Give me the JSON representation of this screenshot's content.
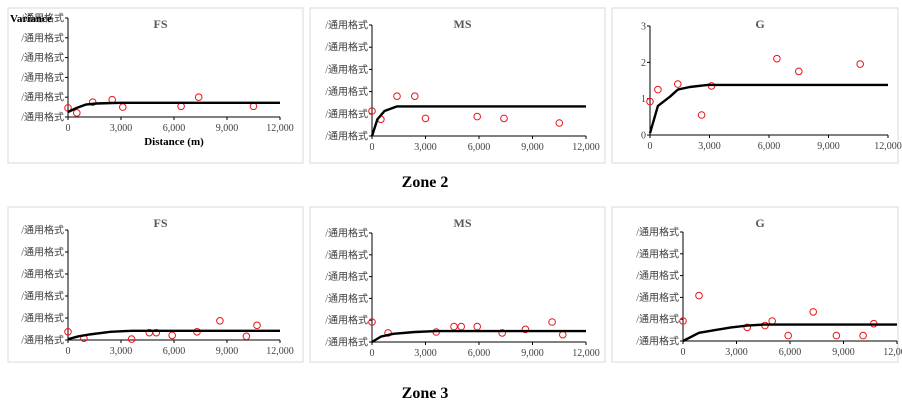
{
  "colors": {
    "point": "#e8141e",
    "model": "#000000",
    "frame": "#d9d9d9"
  },
  "zones": [
    "Zone 2",
    "Zone 3"
  ],
  "chart_data": [
    {
      "type": "scatter",
      "title": "FS",
      "ylabel": "Variance",
      "xlabel": "Distance (m)",
      "xlim": [
        0,
        12000
      ],
      "xticks": [
        "0",
        "3,000",
        "6,000",
        "9,000",
        "12,000"
      ],
      "yticks": [
        "/通用格式",
        "/通用格式",
        "/通用格式",
        "/通用格式",
        "/通用格式",
        "/通用格式"
      ],
      "series": [
        {
          "kind": "points",
          "x": [
            0,
            500,
            1400,
            2500,
            3100,
            6400,
            7400,
            10500
          ],
          "y": [
            0.55,
            0.25,
            0.9,
            1.05,
            0.6,
            0.65,
            1.2,
            0.65
          ]
        },
        {
          "kind": "model",
          "x": [
            0,
            500,
            1000,
            1600,
            2500,
            3000,
            12000
          ],
          "y": [
            0.3,
            0.55,
            0.75,
            0.82,
            0.85,
            0.86,
            0.86
          ]
        }
      ]
    },
    {
      "type": "scatter",
      "title": "MS",
      "xlim": [
        0,
        12000
      ],
      "xticks": [
        "0",
        "3,000",
        "6,000",
        "9,000",
        "12,000"
      ],
      "yticks": [
        "/通用格式",
        "/通用格式",
        "/通用格式",
        "/通用格式",
        "/通用格式",
        "/通用格式"
      ],
      "series": [
        {
          "kind": "points",
          "x": [
            0,
            500,
            1400,
            2400,
            3000,
            5900,
            7400,
            10500
          ],
          "y": [
            1.35,
            0.9,
            2.15,
            2.15,
            0.95,
            1.05,
            0.95,
            0.7
          ]
        },
        {
          "kind": "model",
          "x": [
            0,
            300,
            700,
            1400,
            2000,
            12000
          ],
          "y": [
            0.0,
            0.9,
            1.35,
            1.6,
            1.6,
            1.6
          ]
        }
      ]
    },
    {
      "type": "scatter",
      "title": "G",
      "xlim": [
        0,
        12000
      ],
      "ylim": [
        0,
        3
      ],
      "xticks": [
        "0",
        "3,000",
        "6,000",
        "9,000",
        "12,000"
      ],
      "yticks": [
        "0",
        "1",
        "2",
        "3"
      ],
      "series": [
        {
          "kind": "points",
          "x": [
            0,
            400,
            1400,
            2600,
            3100,
            6400,
            7500,
            10600
          ],
          "y": [
            0.92,
            1.25,
            1.4,
            0.55,
            1.35,
            2.1,
            1.75,
            1.95
          ]
        },
        {
          "kind": "model",
          "x": [
            0,
            400,
            1000,
            1400,
            2000,
            2900,
            12000
          ],
          "y": [
            0.05,
            0.8,
            1.05,
            1.25,
            1.32,
            1.38,
            1.38
          ]
        }
      ]
    },
    {
      "type": "scatter",
      "title": "FS",
      "xlim": [
        0,
        12000
      ],
      "xticks": [
        "0",
        "3,000",
        "6,000",
        "9,000",
        "12,000"
      ],
      "yticks": [
        "/通用格式",
        "/通用格式",
        "/通用格式",
        "/通用格式",
        "/通用格式",
        "/通用格式"
      ],
      "series": [
        {
          "kind": "points",
          "x": [
            0,
            900,
            3600,
            4600,
            5000,
            5900,
            7300,
            8600,
            10100,
            10700
          ],
          "y": [
            0.45,
            0.1,
            0.05,
            0.4,
            0.4,
            0.25,
            0.45,
            1.05,
            0.2,
            0.8
          ]
        },
        {
          "kind": "model",
          "x": [
            0,
            600,
            1200,
            2400,
            3600,
            12000
          ],
          "y": [
            0.05,
            0.2,
            0.3,
            0.45,
            0.5,
            0.5
          ]
        }
      ]
    },
    {
      "type": "scatter",
      "title": "MS",
      "xlim": [
        0,
        12000
      ],
      "xticks": [
        "0",
        "3,000",
        "6,000",
        "9,000",
        "12,000"
      ],
      "yticks": [
        "/通用格式",
        "/通用格式",
        "/通用格式",
        "/通用格式",
        "/通用格式",
        "/通用格式"
      ],
      "series": [
        {
          "kind": "points",
          "x": [
            0,
            900,
            3600,
            4600,
            5000,
            5900,
            7300,
            8600,
            10100,
            10700
          ],
          "y": [
            1.1,
            0.5,
            0.55,
            0.85,
            0.85,
            0.85,
            0.5,
            0.7,
            1.1,
            0.4
          ]
        },
        {
          "kind": "model",
          "x": [
            0,
            500,
            1200,
            2400,
            3600,
            4500,
            12000
          ],
          "y": [
            0.0,
            0.3,
            0.45,
            0.55,
            0.6,
            0.6,
            0.6
          ]
        }
      ]
    },
    {
      "type": "scatter",
      "title": "G",
      "xlim": [
        0,
        12000
      ],
      "xticks": [
        "0",
        "3,000",
        "6,000",
        "9,000",
        "12,000"
      ],
      "yticks": [
        "/通用格式",
        "/通用格式",
        "/通用格式",
        "/通用格式",
        "/通用格式",
        "/通用格式"
      ],
      "series": [
        {
          "kind": "points",
          "x": [
            0,
            900,
            3600,
            4600,
            5000,
            5900,
            7300,
            8600,
            10100,
            10700
          ],
          "y": [
            1.1,
            2.5,
            0.75,
            0.85,
            1.1,
            0.3,
            1.6,
            0.3,
            0.3,
            0.95
          ]
        },
        {
          "kind": "model",
          "x": [
            0,
            900,
            1800,
            2700,
            3600,
            4500,
            12000
          ],
          "y": [
            0.0,
            0.45,
            0.6,
            0.75,
            0.85,
            0.9,
            0.9
          ]
        }
      ]
    }
  ]
}
